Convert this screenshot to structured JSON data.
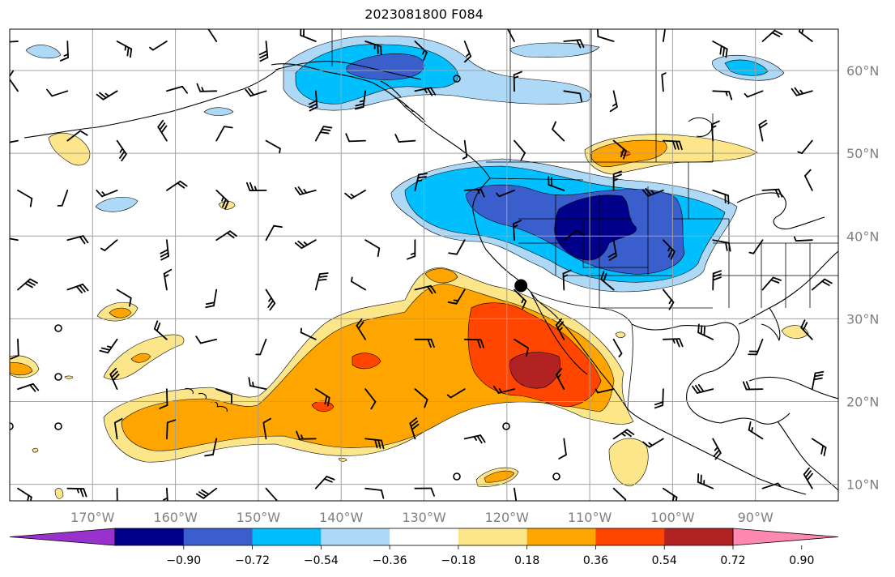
{
  "title": "2023081800 F084",
  "map": {
    "lon_range": [
      -180,
      -80
    ],
    "lat_range": [
      8,
      65
    ],
    "gridlines": true,
    "lon_ticks": [
      "170°W",
      "160°W",
      "150°W",
      "140°W",
      "130°W",
      "120°W",
      "110°W",
      "100°W",
      "90°W"
    ],
    "lat_ticks": [
      "60°N",
      "50°N",
      "40°N",
      "30°N",
      "20°N",
      "10°N"
    ],
    "tick_label_color": "#808080",
    "marker": {
      "lon": -118.3,
      "lat": 34.0
    }
  },
  "colorbar": {
    "orientation": "horizontal",
    "extend": "both",
    "tick_labels": [
      "−0.90",
      "−0.72",
      "−0.54",
      "−0.36",
      "−0.18",
      "0.18",
      "0.36",
      "0.54",
      "0.72",
      "0.90"
    ],
    "colors": [
      "#9932cc",
      "#00008b",
      "#3a5fcd",
      "#00bfff",
      "#add8f6",
      "#ffffff",
      "#fde68a",
      "#ffa500",
      "#ff4500",
      "#b22222",
      "#ff88b0"
    ]
  },
  "fill_colors": {
    "dark_navy": "#00008b",
    "royal_blue": "#3a5fcd",
    "deep_sky": "#00bfff",
    "light_blue": "#add8f6",
    "light_yellow": "#fde68a",
    "orange": "#ffa500",
    "red_orange": "#ff4500",
    "firebrick": "#b22222"
  }
}
